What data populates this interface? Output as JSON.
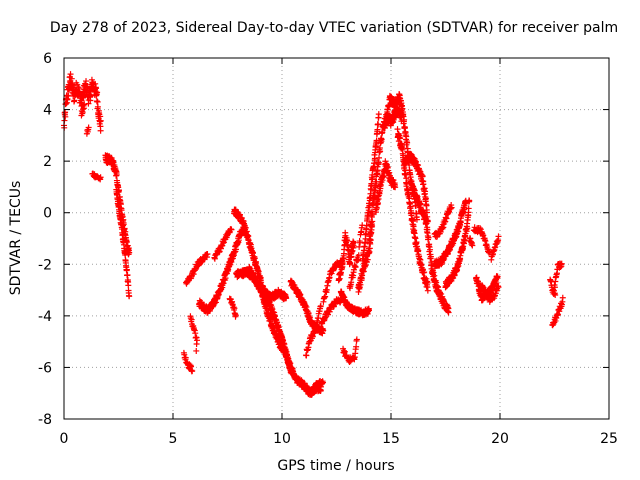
{
  "chart_data": {
    "type": "scatter",
    "title": "Day 278 of 2023, Sidereal Day-to-day VTEC variation (SDTVAR) for receiver palm",
    "xlabel": "GPS time / hours",
    "ylabel": "SDTVAR / TECUs",
    "xlim": [
      0,
      25
    ],
    "ylim": [
      -8,
      6
    ],
    "xticks": [
      0,
      5,
      10,
      15,
      20,
      25
    ],
    "yticks": [
      -8,
      -6,
      -4,
      -2,
      0,
      2,
      4,
      6
    ],
    "grid": true,
    "marker": "+",
    "color": "#ff0000",
    "tracks": [
      {
        "points": [
          [
            0,
            3.3
          ],
          [
            0.1,
            4.3
          ],
          [
            0.3,
            5.2
          ],
          [
            0.45,
            4.5
          ],
          [
            0.6,
            4.9
          ],
          [
            0.8,
            4.3
          ],
          [
            1.0,
            4.9
          ],
          [
            1.15,
            4.4
          ],
          [
            1.3,
            5.0
          ],
          [
            1.5,
            4.6
          ],
          [
            1.6,
            3.8
          ],
          [
            1.7,
            3.3
          ]
        ],
        "step": 0.01,
        "spread": 0.55
      },
      {
        "points": [
          [
            0.8,
            3.8
          ],
          [
            0.95,
            4.2
          ]
        ],
        "step": 0.02,
        "spread": 0.2
      },
      {
        "points": [
          [
            1.05,
            3.1
          ],
          [
            1.15,
            3.3
          ]
        ],
        "step": 0.02,
        "spread": 0.2
      },
      {
        "points": [
          [
            1.3,
            1.5
          ],
          [
            1.7,
            1.3
          ]
        ],
        "step": 0.02,
        "spread": 0.15
      },
      {
        "points": [
          [
            1.9,
            2.1
          ],
          [
            2.2,
            2.0
          ],
          [
            2.4,
            1.5
          ],
          [
            2.6,
            0.3
          ],
          [
            2.75,
            -0.6
          ],
          [
            2.9,
            -1.3
          ],
          [
            3.0,
            -1.6
          ]
        ],
        "step": 0.01,
        "spread": 0.3
      },
      {
        "points": [
          [
            2.4,
            0.8
          ],
          [
            2.6,
            -0.3
          ],
          [
            2.8,
            -1.6
          ],
          [
            2.95,
            -2.8
          ],
          [
            3.0,
            -3.4
          ]
        ],
        "step": 0.01,
        "spread": 0.2
      },
      {
        "points": [
          [
            5.5,
            -5.5
          ],
          [
            5.7,
            -5.9
          ],
          [
            5.9,
            -6.1
          ]
        ],
        "step": 0.02,
        "spread": 0.2
      },
      {
        "points": [
          [
            5.8,
            -4.1
          ],
          [
            6.0,
            -4.6
          ],
          [
            6.1,
            -5.0
          ],
          [
            6.05,
            -5.5
          ]
        ],
        "step": 0.02,
        "spread": 0.2
      },
      {
        "points": [
          [
            5.6,
            -2.7
          ],
          [
            5.85,
            -2.5
          ],
          [
            6.1,
            -2.0
          ],
          [
            6.4,
            -1.8
          ],
          [
            6.6,
            -1.6
          ]
        ],
        "step": 0.02,
        "spread": 0.2
      },
      {
        "points": [
          [
            6.2,
            -3.5
          ],
          [
            6.6,
            -3.8
          ],
          [
            6.95,
            -3.4
          ],
          [
            7.3,
            -2.7
          ],
          [
            7.6,
            -2.0
          ],
          [
            7.9,
            -1.3
          ],
          [
            8.1,
            -0.8
          ],
          [
            8.3,
            -0.6
          ]
        ],
        "step": 0.01,
        "spread": 0.25
      },
      {
        "points": [
          [
            6.9,
            -1.8
          ],
          [
            7.2,
            -1.3
          ],
          [
            7.5,
            -0.8
          ],
          [
            7.7,
            -0.6
          ]
        ],
        "step": 0.02,
        "spread": 0.2
      },
      {
        "points": [
          [
            7.6,
            -3.3
          ],
          [
            7.8,
            -3.7
          ],
          [
            7.9,
            -4.1
          ]
        ],
        "step": 0.02,
        "spread": 0.15
      },
      {
        "points": [
          [
            7.8,
            0.1
          ],
          [
            8.2,
            -0.3
          ],
          [
            8.55,
            -1.3
          ],
          [
            8.9,
            -2.3
          ],
          [
            9.2,
            -3.1
          ],
          [
            9.5,
            -3.3
          ],
          [
            9.85,
            -3.1
          ],
          [
            10.2,
            -3.3
          ]
        ],
        "step": 0.01,
        "spread": 0.25
      },
      {
        "points": [
          [
            7.9,
            -2.4
          ],
          [
            8.4,
            -2.3
          ],
          [
            8.7,
            -2.5
          ],
          [
            9.0,
            -2.9
          ],
          [
            9.3,
            -3.8
          ],
          [
            9.6,
            -4.5
          ],
          [
            9.9,
            -5.1
          ],
          [
            10.2,
            -5.5
          ],
          [
            10.45,
            -6.2
          ]
        ],
        "step": 0.01,
        "spread": 0.25
      },
      {
        "points": [
          [
            8.5,
            -2.2
          ],
          [
            8.9,
            -2.8
          ],
          [
            9.3,
            -3.3
          ],
          [
            9.6,
            -3.9
          ],
          [
            10.0,
            -4.9
          ],
          [
            10.3,
            -5.8
          ],
          [
            10.6,
            -6.4
          ],
          [
            11.0,
            -6.7
          ],
          [
            11.3,
            -7.0
          ],
          [
            11.55,
            -6.8
          ],
          [
            11.8,
            -6.8
          ]
        ],
        "step": 0.01,
        "spread": 0.25
      },
      {
        "points": [
          [
            10.4,
            -2.7
          ],
          [
            10.8,
            -3.2
          ],
          [
            11.1,
            -3.7
          ],
          [
            11.35,
            -4.3
          ],
          [
            11.6,
            -4.5
          ],
          [
            11.9,
            -4.6
          ]
        ],
        "step": 0.01,
        "spread": 0.2
      },
      {
        "points": [
          [
            11.1,
            -5.5
          ],
          [
            11.3,
            -4.9
          ],
          [
            11.55,
            -4.5
          ],
          [
            11.8,
            -3.5
          ]
        ],
        "step": 0.02,
        "spread": 0.2
      },
      {
        "points": [
          [
            11.4,
            -6.8
          ],
          [
            11.6,
            -6.6
          ],
          [
            11.9,
            -6.6
          ]
        ],
        "step": 0.02,
        "spread": 0.15
      },
      {
        "points": [
          [
            11.9,
            -3.5
          ],
          [
            12.2,
            -2.4
          ],
          [
            12.5,
            -2.0
          ],
          [
            12.8,
            -1.9
          ]
        ],
        "step": 0.02,
        "spread": 0.2
      },
      {
        "points": [
          [
            11.8,
            -4.3
          ],
          [
            12.15,
            -3.8
          ],
          [
            12.5,
            -3.4
          ],
          [
            12.75,
            -3.4
          ]
        ],
        "step": 0.02,
        "spread": 0.2
      },
      {
        "points": [
          [
            12.6,
            -2.6
          ],
          [
            12.8,
            -1.9
          ],
          [
            12.9,
            -0.9
          ],
          [
            13.0,
            -1.2
          ],
          [
            13.1,
            -1.9
          ],
          [
            13.3,
            -1.1
          ]
        ],
        "step": 0.01,
        "spread": 0.3
      },
      {
        "points": [
          [
            12.7,
            -3.1
          ],
          [
            13.0,
            -3.6
          ],
          [
            13.35,
            -3.8
          ],
          [
            13.7,
            -3.9
          ],
          [
            14.0,
            -3.8
          ]
        ],
        "step": 0.01,
        "spread": 0.2
      },
      {
        "points": [
          [
            12.8,
            -5.3
          ],
          [
            13.0,
            -5.7
          ],
          [
            13.3,
            -5.7
          ],
          [
            13.4,
            -5.2
          ],
          [
            13.45,
            -4.8
          ]
        ],
        "step": 0.02,
        "spread": 0.2
      },
      {
        "points": [
          [
            13.1,
            -2.9
          ],
          [
            13.3,
            -2.2
          ],
          [
            13.5,
            -1.7
          ],
          [
            13.6,
            -0.9
          ],
          [
            13.7,
            -0.3
          ]
        ],
        "step": 0.02,
        "spread": 0.25
      },
      {
        "points": [
          [
            13.5,
            -3.0
          ],
          [
            13.8,
            -2.0
          ],
          [
            14.0,
            -1.5
          ],
          [
            14.15,
            -0.3
          ]
        ],
        "step": 0.01,
        "spread": 0.3
      },
      {
        "points": [
          [
            13.7,
            -1.9
          ],
          [
            13.9,
            -0.4
          ],
          [
            14.1,
            1.1
          ],
          [
            14.3,
            2.5
          ],
          [
            14.45,
            3.8
          ]
        ],
        "step": 0.01,
        "spread": 0.3
      },
      {
        "points": [
          [
            14.0,
            -1.1
          ],
          [
            14.2,
            0.5
          ],
          [
            14.4,
            1.8
          ],
          [
            14.6,
            3.2
          ],
          [
            14.8,
            3.7
          ],
          [
            15.0,
            3.5
          ],
          [
            15.25,
            3.9
          ],
          [
            15.5,
            3.7
          ]
        ],
        "step": 0.01,
        "spread": 0.35
      },
      {
        "points": [
          [
            14.3,
            0.0
          ],
          [
            14.5,
            1.0
          ],
          [
            14.75,
            1.9
          ],
          [
            15.0,
            1.2
          ],
          [
            15.2,
            1.1
          ]
        ],
        "step": 0.01,
        "spread": 0.3
      },
      {
        "points": [
          [
            14.7,
            3.2
          ],
          [
            14.95,
            4.4
          ],
          [
            15.2,
            4.2
          ],
          [
            15.4,
            4.5
          ],
          [
            15.55,
            3.8
          ],
          [
            15.75,
            2.5
          ],
          [
            15.9,
            1.3
          ],
          [
            16.1,
            0.6
          ],
          [
            16.2,
            -0.5
          ]
        ],
        "step": 0.01,
        "spread": 0.3
      },
      {
        "points": [
          [
            15.3,
            3.1
          ],
          [
            15.5,
            2.5
          ],
          [
            15.7,
            1.2
          ],
          [
            15.9,
            0.1
          ],
          [
            16.1,
            -1.0
          ],
          [
            16.3,
            -1.8
          ],
          [
            16.5,
            -2.4
          ],
          [
            16.7,
            -2.9
          ]
        ],
        "step": 0.01,
        "spread": 0.3
      },
      {
        "points": [
          [
            15.6,
            2.0
          ],
          [
            15.85,
            2.2
          ],
          [
            16.05,
            2.0
          ],
          [
            16.3,
            1.6
          ],
          [
            16.45,
            1.3
          ],
          [
            16.6,
            0.5
          ],
          [
            16.7,
            -0.5
          ]
        ],
        "step": 0.01,
        "spread": 0.3
      },
      {
        "points": [
          [
            16.0,
            0.9
          ],
          [
            16.3,
            0.3
          ],
          [
            16.6,
            -0.3
          ],
          [
            16.75,
            -1.3
          ],
          [
            16.9,
            -2.3
          ],
          [
            17.1,
            -2.9
          ],
          [
            17.4,
            -3.5
          ],
          [
            17.65,
            -3.8
          ]
        ],
        "step": 0.01,
        "spread": 0.3
      },
      {
        "points": [
          [
            17.0,
            -0.9
          ],
          [
            17.2,
            -0.8
          ],
          [
            17.4,
            -0.5
          ],
          [
            17.6,
            0.0
          ],
          [
            17.8,
            0.3
          ]
        ],
        "step": 0.02,
        "spread": 0.2
      },
      {
        "points": [
          [
            17.0,
            -2.0
          ],
          [
            17.3,
            -1.9
          ],
          [
            17.6,
            -1.5
          ],
          [
            17.9,
            -1.0
          ],
          [
            18.1,
            -0.6
          ],
          [
            18.25,
            -0.1
          ],
          [
            18.45,
            0.5
          ]
        ],
        "step": 0.01,
        "spread": 0.25
      },
      {
        "points": [
          [
            17.5,
            -2.8
          ],
          [
            17.8,
            -2.5
          ],
          [
            18.05,
            -2.1
          ],
          [
            18.3,
            -1.3
          ],
          [
            18.5,
            -0.5
          ],
          [
            18.6,
            0.6
          ]
        ],
        "step": 0.01,
        "spread": 0.25
      },
      {
        "points": [
          [
            18.6,
            -1.0
          ],
          [
            18.75,
            -1.3
          ]
        ],
        "step": 0.02,
        "spread": 0.15
      },
      {
        "points": [
          [
            18.8,
            -0.6
          ],
          [
            19.1,
            -0.7
          ],
          [
            19.35,
            -1.2
          ],
          [
            19.55,
            -1.6
          ]
        ],
        "step": 0.02,
        "spread": 0.2
      },
      {
        "points": [
          [
            18.9,
            -2.5
          ],
          [
            19.15,
            -3.3
          ],
          [
            19.4,
            -3.2
          ],
          [
            19.65,
            -2.9
          ],
          [
            19.9,
            -2.5
          ]
        ],
        "step": 0.01,
        "spread": 0.25
      },
      {
        "points": [
          [
            19.05,
            -2.8
          ],
          [
            19.3,
            -3.0
          ],
          [
            19.55,
            -3.4
          ],
          [
            19.75,
            -3.2
          ],
          [
            19.95,
            -2.8
          ]
        ],
        "step": 0.02,
        "spread": 0.2
      },
      {
        "points": [
          [
            19.6,
            -1.8
          ],
          [
            19.8,
            -1.3
          ],
          [
            19.95,
            -0.9
          ]
        ],
        "step": 0.02,
        "spread": 0.2
      },
      {
        "points": [
          [
            22.3,
            -2.5
          ],
          [
            22.4,
            -3.0
          ],
          [
            22.55,
            -3.2
          ]
        ],
        "step": 0.02,
        "spread": 0.2
      },
      {
        "points": [
          [
            22.5,
            -2.9
          ],
          [
            22.65,
            -2.1
          ],
          [
            22.85,
            -2.0
          ]
        ],
        "step": 0.02,
        "spread": 0.2
      },
      {
        "points": [
          [
            22.4,
            -4.4
          ],
          [
            22.6,
            -4.0
          ],
          [
            22.8,
            -3.6
          ],
          [
            22.9,
            -3.3
          ]
        ],
        "step": 0.02,
        "spread": 0.2
      }
    ]
  }
}
